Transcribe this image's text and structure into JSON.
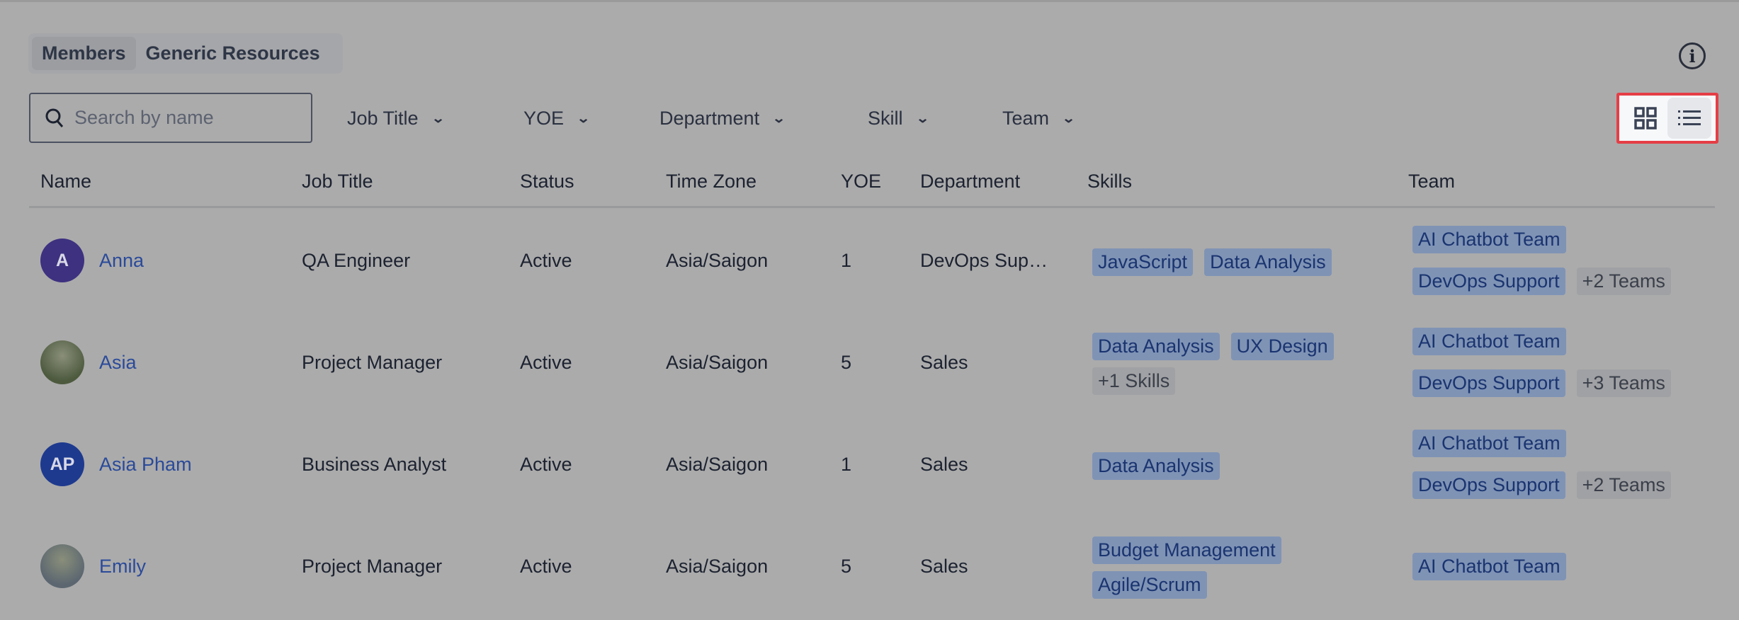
{
  "tabs": [
    {
      "label": "Members",
      "active": true
    },
    {
      "label": "Generic Resources",
      "active": false
    }
  ],
  "search": {
    "placeholder": "Search by name",
    "value": ""
  },
  "filters": [
    "Job Title",
    "YOE",
    "Department",
    "Skill",
    "Team"
  ],
  "view_toggle": {
    "options": [
      "grid",
      "list"
    ],
    "selected": "list",
    "highlight_color": "#e53e46"
  },
  "columns": [
    "Name",
    "Job Title",
    "Status",
    "Time Zone",
    "YOE",
    "Department",
    "Skills",
    "Team"
  ],
  "rows": [
    {
      "initials": "A",
      "avatar_color": "#3d3180",
      "name": "Anna",
      "job": "QA Engineer",
      "status": "Active",
      "tz": "Asia/Saigon",
      "yoe": "1",
      "dept": "DevOps Sup…",
      "skills": [
        "JavaScript",
        "Data Analysis"
      ],
      "skills_more": "",
      "teams": [
        "AI Chatbot Team",
        "DevOps Support"
      ],
      "teams_more": "+2 Teams"
    },
    {
      "initials": "",
      "avatar_color": "#4d5a3e",
      "name": "Asia",
      "job": "Project Manager",
      "status": "Active",
      "tz": "Asia/Saigon",
      "yoe": "5",
      "dept": "Sales",
      "skills": [
        "Data Analysis",
        "UX Design"
      ],
      "skills_more": "+1 Skills",
      "teams": [
        "AI Chatbot Team",
        "DevOps Support"
      ],
      "teams_more": "+3 Teams"
    },
    {
      "initials": "AP",
      "avatar_color": "#1e3a8f",
      "name": "Asia Pham",
      "job": "Business Analyst",
      "status": "Active",
      "tz": "Asia/Saigon",
      "yoe": "1",
      "dept": "Sales",
      "skills": [
        "Data Analysis"
      ],
      "skills_more": "",
      "teams": [
        "AI Chatbot Team",
        "DevOps Support"
      ],
      "teams_more": "+2 Teams"
    },
    {
      "initials": "",
      "avatar_color": "#5b6670",
      "name": "Emily",
      "job": "Project Manager",
      "status": "Active",
      "tz": "Asia/Saigon",
      "yoe": "5",
      "dept": "Sales",
      "skills": [
        "Budget Management",
        "Agile/Scrum"
      ],
      "skills_more": "",
      "teams": [
        "AI Chatbot Team"
      ],
      "teams_more": ""
    }
  ]
}
